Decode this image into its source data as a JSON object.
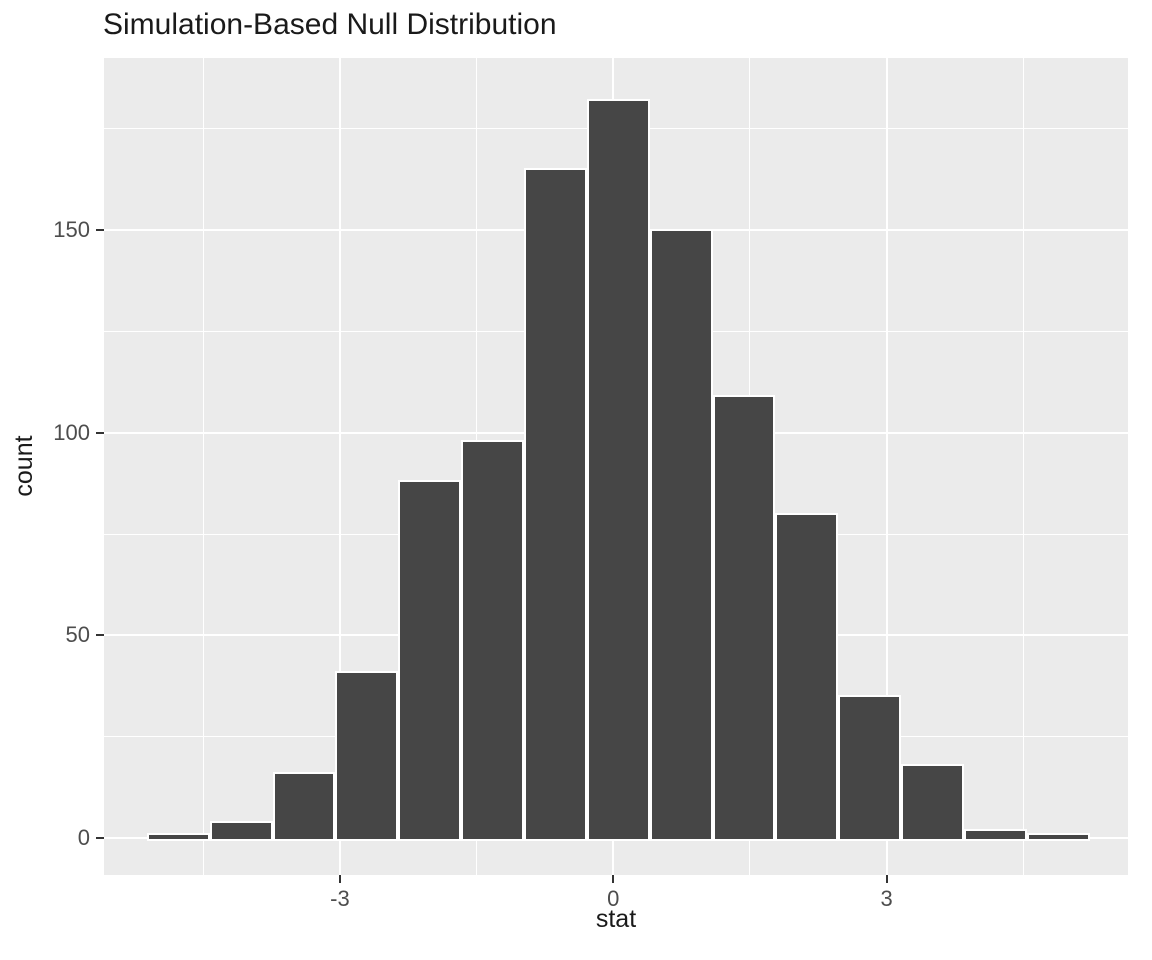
{
  "chart_data": {
    "type": "bar",
    "subtype": "histogram",
    "title": "Simulation-Based Null Distribution",
    "xlabel": "stat",
    "ylabel": "count",
    "legend": "none",
    "grid": "on",
    "bin_start": -5.12,
    "bin_width": 0.69,
    "bin_centers": [
      -4.77,
      -4.08,
      -3.38,
      -2.69,
      -2.0,
      -1.31,
      -0.61,
      0.08,
      0.77,
      1.46,
      2.16,
      2.85,
      3.54,
      4.23,
      4.93
    ],
    "counts": [
      1,
      4,
      16,
      41,
      88,
      98,
      165,
      182,
      150,
      109,
      80,
      35,
      18,
      2,
      1
    ],
    "xlim": [
      -5.59,
      5.65
    ],
    "ylim": [
      -9.1,
      192.4
    ],
    "x_ticks": [
      -3,
      0,
      3
    ],
    "x_tick_labels": [
      "-3",
      "0",
      "3"
    ],
    "x_minor_ticks": [
      -4.5,
      -1.5,
      1.5,
      4.5
    ],
    "y_ticks": [
      0,
      50,
      100,
      150
    ],
    "y_tick_labels": [
      "0",
      "50",
      "100",
      "150"
    ],
    "y_minor_ticks": [
      25,
      75,
      125,
      175
    ],
    "colors": {
      "bar_fill": "#464646",
      "bar_border": "#FFFFFF",
      "panel_background": "#EBEBEB",
      "gridline": "#FFFFFF",
      "tick_text": "#4D4D4D",
      "tick_mark": "#333333",
      "title_text": "#1A1A1A"
    }
  }
}
